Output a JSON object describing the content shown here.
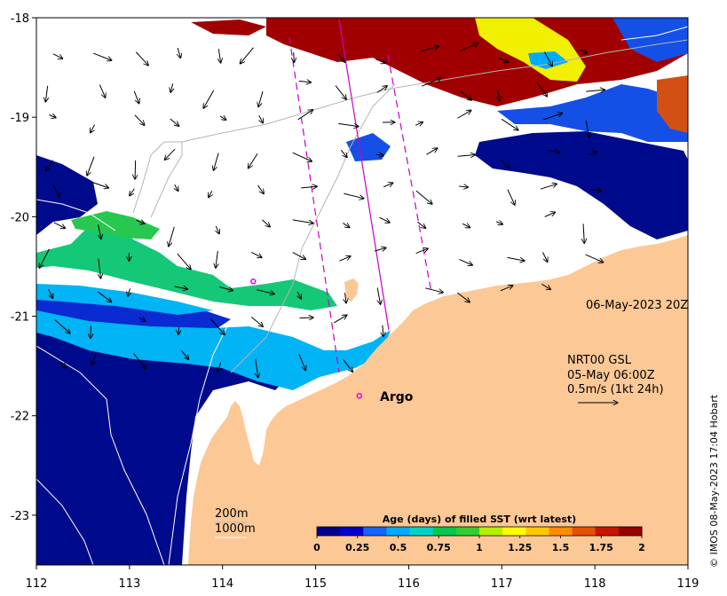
{
  "map": {
    "lon_ticks": [
      "112",
      "113",
      "114",
      "115",
      "116",
      "117",
      "118",
      "119"
    ],
    "lat_ticks": [
      "-18",
      "-19",
      "-20",
      "-21",
      "-22",
      "-23"
    ],
    "lon_range": [
      112,
      119
    ],
    "lat_range": [
      -18,
      -23.5
    ],
    "land_color": "#fcc896",
    "ocean_no_data_color": "#ffffff",
    "date_label": "06-May-2023 20Z",
    "current_label": {
      "line1": "NRT00 GSL",
      "line2": "05-May 06:00Z",
      "line3": "0.5m/s (1kt 24h)"
    },
    "argo_label": "Argo",
    "depth_labels": [
      "200m",
      "1000m"
    ],
    "credit": "© IMOS 08-May-2023 17:04 Hobart",
    "argo_markers": [
      {
        "lon": 114.33,
        "lat": -20.65
      },
      {
        "lon": 115.47,
        "lat": -21.8
      }
    ]
  },
  "colorbar": {
    "title": "Age (days) of filled SST (wrt latest)",
    "tick_labels": [
      "0",
      "0.25",
      "0.5",
      "0.75",
      "1",
      "1.25",
      "1.5",
      "1.75",
      "2"
    ],
    "range": [
      0,
      2
    ],
    "colors": [
      "#00008b",
      "#0000cd",
      "#1464ff",
      "#00aaff",
      "#00d2c8",
      "#00c850",
      "#32cd32",
      "#b4f000",
      "#ffff00",
      "#ffc800",
      "#ff8c00",
      "#e65000",
      "#c81400",
      "#960000"
    ]
  }
}
